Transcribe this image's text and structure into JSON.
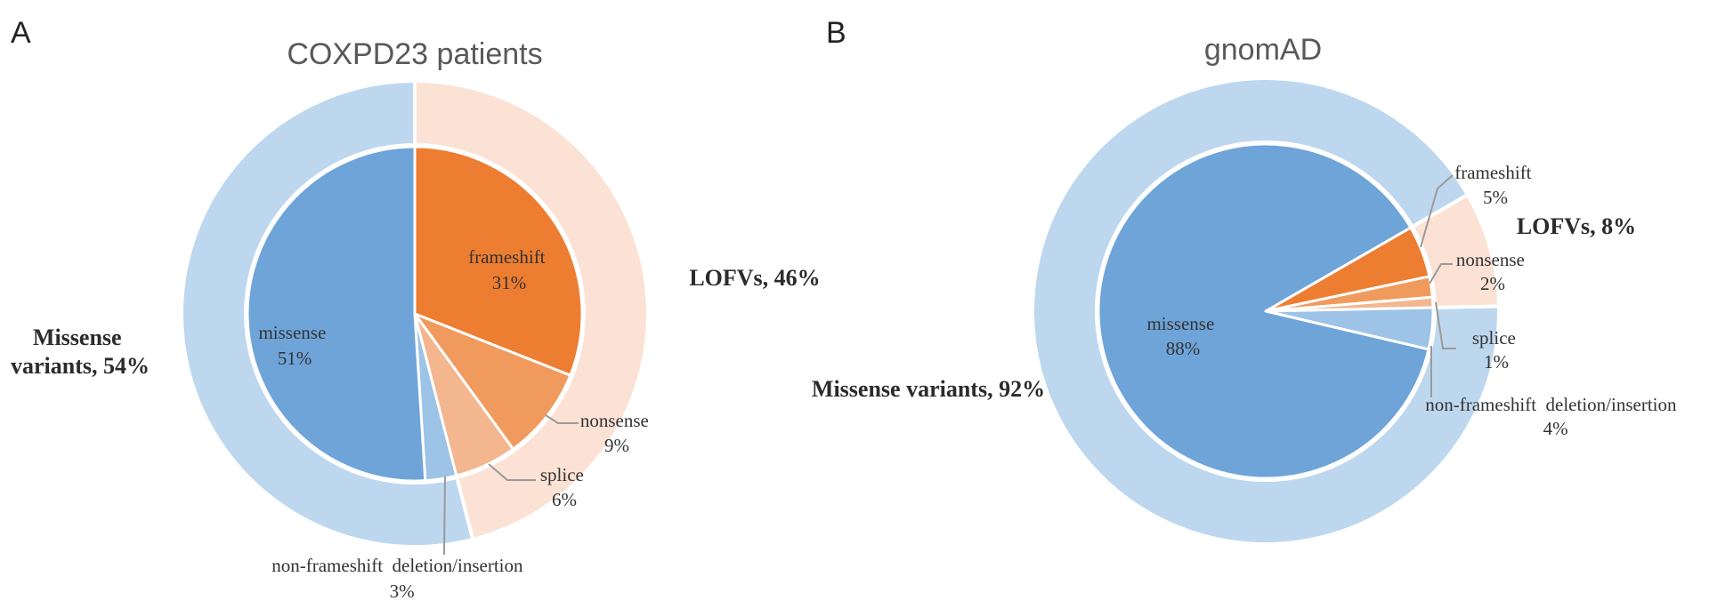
{
  "chart_data": [
    {
      "type": "pie",
      "panel": "A",
      "title": "COXPD23 patients",
      "outer_ring": [
        {
          "label_lines": [
            "LOFVs, 46%"
          ],
          "value": 46,
          "color": "#fbe2d5"
        },
        {
          "label_lines": [
            "Missense",
            "variants, 54%"
          ],
          "value": 54,
          "color": "#bdd7ee"
        }
      ],
      "inner": [
        {
          "label": "frameshift",
          "pct": "31%",
          "value": 31,
          "color": "#ed7d31"
        },
        {
          "label": "nonsense",
          "pct": "9%",
          "value": 9,
          "color": "#f19a5d"
        },
        {
          "label": "splice",
          "pct": "6%",
          "value": 6,
          "color": "#f4b68e"
        },
        {
          "label": "non-frameshift  deletion/insertion",
          "pct": "3%",
          "value": 3,
          "color": "#9dc3e6"
        },
        {
          "label": "missense",
          "pct": "51%",
          "value": 51,
          "color": "#6fa4d9"
        }
      ]
    },
    {
      "type": "pie",
      "panel": "B",
      "title": "gnomAD",
      "outer_ring": [
        {
          "label_lines": [
            "LOFVs, 8%"
          ],
          "value": 8,
          "color": "#fbe2d5"
        },
        {
          "label_lines": [
            "Missense variants, 92%"
          ],
          "value": 92,
          "color": "#bdd7ee"
        }
      ],
      "inner": [
        {
          "label": "frameshift",
          "pct": "5%",
          "value": 5,
          "color": "#ed7d31"
        },
        {
          "label": "nonsense",
          "pct": "2%",
          "value": 2,
          "color": "#f19a5d"
        },
        {
          "label": "splice",
          "pct": "1%",
          "value": 1,
          "color": "#f4b68e"
        },
        {
          "label": "non-frameshift  deletion/insertion",
          "pct": "4%",
          "value": 4,
          "color": "#9dc3e6"
        },
        {
          "label": "missense",
          "pct": "88%",
          "value": 88,
          "color": "#6fa4d9"
        }
      ]
    }
  ]
}
